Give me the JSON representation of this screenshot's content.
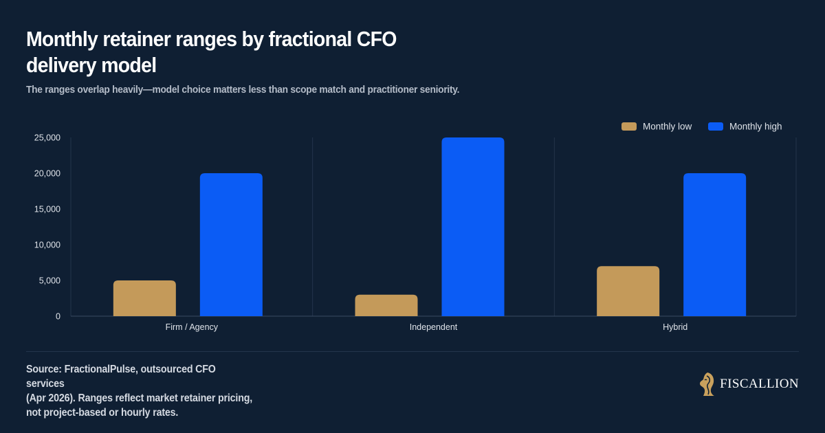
{
  "header": {
    "title": "Monthly retainer ranges by fractional CFO delivery model",
    "subtitle": "The ranges overlap heavily—model choice matters less than scope match and practitioner seniority."
  },
  "footer": {
    "source_lines": [
      "Source: FractionalPulse, outsourced CFO services",
      "(Apr 2026). Ranges reflect market retainer pricing,",
      "not project-based or hourly rates."
    ],
    "brand_name": "FISCALLION",
    "brand_icon": "horse-head-logo-icon"
  },
  "colors": {
    "background": "#0f1f33",
    "low": "#c49a5a",
    "high": "#0b5cf5",
    "grid": "#23344b",
    "axis_text": "#dfe3e9"
  },
  "chart_data": {
    "type": "bar",
    "categories": [
      "Firm / Agency",
      "Independent",
      "Hybrid"
    ],
    "series": [
      {
        "name": "Monthly low",
        "values": [
          5000,
          3000,
          7000
        ]
      },
      {
        "name": "Monthly high",
        "values": [
          20000,
          25000,
          20000
        ]
      }
    ],
    "ylim": [
      0,
      25000
    ],
    "yticks": [
      0,
      5000,
      10000,
      15000,
      20000,
      25000
    ],
    "ytick_labels": [
      "0",
      "5,000",
      "10,000",
      "15,000",
      "20,000",
      "25,000"
    ],
    "legend_position": "top-right",
    "grid": "vertical separators between categories"
  }
}
